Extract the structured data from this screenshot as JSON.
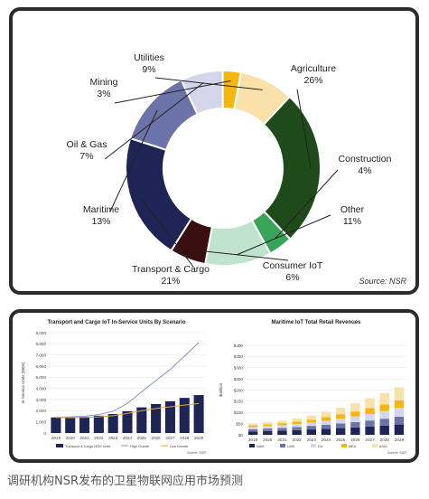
{
  "caption": "调研机构NSR发布的卫星物联网应用市场预测",
  "chart_data": [
    {
      "type": "pie",
      "source": "Source: NSR",
      "slices": [
        {
          "label": "Agriculture",
          "pct_label": "26%",
          "value": 26,
          "color": "#1f4a1a"
        },
        {
          "label": "Construction",
          "pct_label": "4%",
          "value": 4,
          "color": "#3aa35a"
        },
        {
          "label": "Other",
          "pct_label": "11%",
          "value": 11,
          "color": "#bfe3cc"
        },
        {
          "label": "Consumer IoT",
          "pct_label": "6%",
          "value": 6,
          "color": "#3a0f0f"
        },
        {
          "label": "Transport & Cargo",
          "pct_label": "21%",
          "value": 21,
          "color": "#1f2457"
        },
        {
          "label": "Maritime",
          "pct_label": "13%",
          "value": 13,
          "color": "#6b73a8"
        },
        {
          "label": "Oil & Gas",
          "pct_label": "7%",
          "value": 7,
          "color": "#d5d6ec"
        },
        {
          "label": "Mining",
          "pct_label": "3%",
          "value": 3,
          "color": "#f5b70f"
        },
        {
          "label": "Utilities",
          "pct_label": "9%",
          "value": 9,
          "color": "#f9e1a9"
        }
      ]
    },
    {
      "type": "bar",
      "title": "Transport and Cargo IoT In-Service Units By Scenario",
      "ylabel": "In-Service Units (000s)",
      "source": "Source: NSR",
      "categories": [
        "2019",
        "2020",
        "2021",
        "2022",
        "2023",
        "2024",
        "2025",
        "2026",
        "2027",
        "2028",
        "2029"
      ],
      "ylim": [
        0,
        9000
      ],
      "yticks": [
        "0",
        "1,000",
        "2,000",
        "3,000",
        "4,000",
        "5,000",
        "6,000",
        "7,000",
        "8,000",
        "9,000"
      ],
      "series": [
        {
          "name": "Transport & Cargo M2M Units",
          "kind": "bar",
          "color": "#1f2457",
          "values": [
            1400,
            1400,
            1450,
            1550,
            1700,
            1950,
            2300,
            2600,
            2850,
            3150,
            3400
          ]
        },
        {
          "name": "High Growth",
          "kind": "line",
          "color": "#8a92c4",
          "values": [
            1400,
            1450,
            1500,
            1650,
            1950,
            2650,
            3700,
            4700,
            5700,
            6900,
            8100
          ]
        },
        {
          "name": "Low Growth",
          "kind": "line",
          "color": "#e3a43a",
          "values": [
            1400,
            1380,
            1400,
            1450,
            1550,
            1750,
            2000,
            2200,
            2350,
            2500,
            2650
          ]
        }
      ]
    },
    {
      "type": "bar",
      "stacked": true,
      "title": "Maritime IoT Total Retail Revenues",
      "ylabel": "$million",
      "source": "Source: NSR",
      "categories": [
        "2019",
        "2020",
        "2021",
        "2022",
        "2023",
        "2024",
        "2025",
        "2026",
        "2027",
        "2028",
        "2029"
      ],
      "ylim": [
        0,
        400
      ],
      "yticks": [
        "$0",
        "$50",
        "$100",
        "$150",
        "$200",
        "$250",
        "$300",
        "$350",
        "$400"
      ],
      "series": [
        {
          "name": "NAM",
          "color": "#1f2457",
          "values": [
            15,
            17,
            19,
            21,
            24,
            27,
            30,
            33,
            37,
            41,
            46
          ]
        },
        {
          "name": "LAM",
          "color": "#6b73a8",
          "values": [
            10,
            11,
            12,
            14,
            16,
            18,
            21,
            24,
            27,
            31,
            35
          ]
        },
        {
          "name": "EU",
          "color": "#d5d6ec",
          "values": [
            10,
            11,
            12,
            13,
            15,
            18,
            21,
            25,
            29,
            34,
            39
          ]
        },
        {
          "name": "MEA",
          "color": "#f5b70f",
          "values": [
            7,
            8,
            9,
            11,
            13,
            16,
            19,
            22,
            26,
            30,
            34
          ]
        },
        {
          "name": "ASIA",
          "color": "#f9e1a9",
          "values": [
            8,
            9,
            11,
            14,
            18,
            24,
            30,
            37,
            44,
            51,
            58
          ]
        }
      ]
    }
  ]
}
